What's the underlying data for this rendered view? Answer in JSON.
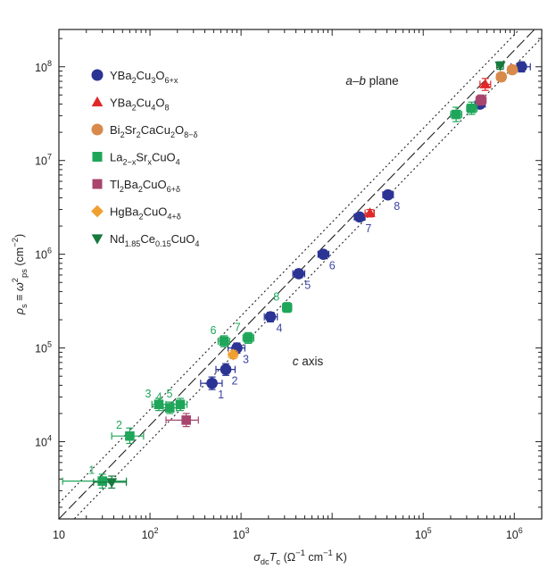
{
  "chart_data": {
    "type": "scatter",
    "x_scale": "log",
    "y_scale": "log",
    "xlim": [
      10,
      2000000
    ],
    "ylim": [
      1500,
      250000000
    ],
    "xlabel": "σdcTc (Ω⁻¹ cm⁻¹ K)",
    "ylabel": "ρs ≡ ω²ps (cm⁻²)",
    "x_ticks": [
      {
        "value": 10,
        "base": "10",
        "exp": ""
      },
      {
        "value": 100,
        "base": "10",
        "exp": "2"
      },
      {
        "value": 1000,
        "base": "10",
        "exp": "3"
      },
      {
        "value": 100000,
        "base": "10",
        "exp": "5"
      },
      {
        "value": 1000000,
        "base": "10",
        "exp": "6"
      }
    ],
    "y_ticks": [
      {
        "value": 10000,
        "base": "10",
        "exp": "4"
      },
      {
        "value": 100000,
        "base": "10",
        "exp": "5"
      },
      {
        "value": 1000000,
        "base": "10",
        "exp": "6"
      },
      {
        "value": 10000000,
        "base": "10",
        "exp": "7"
      },
      {
        "value": 100000000,
        "base": "10",
        "exp": "8"
      }
    ],
    "region_labels": [
      "a–b plane",
      "c axis"
    ],
    "fit_lines": [
      {
        "name": "fit",
        "style": "long-dash",
        "points": [
          [
            10,
            1500
          ],
          [
            2000000,
            300000000
          ]
        ]
      },
      {
        "name": "upper bound",
        "style": "dotted",
        "points": [
          [
            10,
            2200
          ],
          [
            2000000,
            440000000
          ]
        ]
      },
      {
        "name": "lower bound",
        "style": "dotted",
        "points": [
          [
            10,
            1020
          ],
          [
            2000000,
            204000000
          ]
        ]
      }
    ],
    "series": [
      {
        "name": "YBa2Cu3O6+x",
        "marker": "circle",
        "color": "#2b3494",
        "label_color": "#3d45a3",
        "points": [
          {
            "x": 480,
            "y": 42000,
            "label": "1",
            "xerr": [
              360,
              620
            ],
            "yerr": [
              36000,
              49000
            ]
          },
          {
            "x": 680,
            "y": 59000,
            "label": "2",
            "xerr": [
              530,
              860
            ],
            "yerr": [
              51000,
              68000
            ]
          },
          {
            "x": 900,
            "y": 100000,
            "label": "3",
            "xerr": [
              720,
              1100
            ],
            "yerr": [
              88000,
              113000
            ]
          },
          {
            "x": 2100,
            "y": 215000,
            "label": "4",
            "xerr": [
              1800,
              2500
            ],
            "yerr": [
              190000,
              240000
            ]
          },
          {
            "x": 4300,
            "y": 620000,
            "label": "5",
            "xerr": [
              3700,
              5000
            ],
            "yerr": [
              560000,
              690000
            ]
          },
          {
            "x": 8000,
            "y": 1000000,
            "label": "6",
            "xerr": [
              7000,
              9200
            ],
            "yerr": [
              910000,
              1100000
            ]
          },
          {
            "x": 20000,
            "y": 2500000,
            "label": "7",
            "xerr": [
              17500,
              23000
            ],
            "yerr": [
              2300000,
              2720000
            ]
          },
          {
            "x": 41000,
            "y": 4300000,
            "label": "8",
            "xerr": [
              36000,
              47000
            ],
            "yerr": [
              3900000,
              4700000
            ]
          },
          {
            "x": 420000,
            "y": 40000000,
            "label": "",
            "xerr": [
              370000,
              480000
            ],
            "yerr": [
              36000000,
              44000000
            ]
          },
          {
            "x": 1200000,
            "y": 100000000,
            "label": "",
            "xerr": [
              920000,
              1500000
            ],
            "yerr": [
              88000000,
              113000000
            ]
          }
        ]
      },
      {
        "name": "YBa2Cu4O8",
        "marker": "triangle-up",
        "color": "#e02828",
        "label_color": "#e02828",
        "points": [
          {
            "x": 26000,
            "y": 2750000,
            "label": "",
            "xerr": [
              23000,
              29000
            ],
            "yerr": [
              2500000,
              3000000
            ]
          },
          {
            "x": 480000,
            "y": 65000000,
            "label": "",
            "xerr": [
              420000,
              550000
            ],
            "yerr": [
              56000000,
              75000000
            ]
          }
        ]
      },
      {
        "name": "Bi2Sr2CaCu2O8−δ",
        "marker": "circle",
        "color": "#d88a4a",
        "label_color": "#d88a4a",
        "points": [
          {
            "x": 720000,
            "y": 78000000,
            "label": "",
            "xerr": [
              640000,
              800000
            ],
            "yerr": [
              70000000,
              87000000
            ]
          },
          {
            "x": 950000,
            "y": 93000000,
            "label": "",
            "xerr": [
              850000,
              1060000
            ],
            "yerr": [
              84000000,
              103000000
            ]
          }
        ]
      },
      {
        "name": "La2−xSrxCuO4",
        "marker": "square",
        "color": "#1fa65a",
        "label_color": "#1fa65a",
        "points": [
          {
            "x": 30,
            "y": 3800,
            "label": "1",
            "xerr": [
              11,
              55
            ],
            "yerr": [
              3200,
              4500
            ]
          },
          {
            "x": 60,
            "y": 11500,
            "label": "2",
            "xerr": [
              38,
              85
            ],
            "yerr": [
              9600,
              14000
            ]
          },
          {
            "x": 125,
            "y": 25000,
            "label": "3",
            "xerr": [
              105,
              150
            ],
            "yerr": [
              21500,
              29000
            ]
          },
          {
            "x": 165,
            "y": 23000,
            "label": "4",
            "xerr": [
              140,
              195
            ],
            "yerr": [
              20000,
              26500
            ]
          },
          {
            "x": 215,
            "y": 25000,
            "label": "5",
            "xerr": [
              180,
              255
            ],
            "yerr": [
              21500,
              29000
            ]
          },
          {
            "x": 650,
            "y": 118000,
            "label": "6",
            "xerr": [
              560,
              750
            ],
            "yerr": [
              103000,
              135000
            ]
          },
          {
            "x": 1200,
            "y": 128000,
            "label": "7",
            "xerr": [
              1050,
              1380
            ],
            "yerr": [
              112000,
              146000
            ]
          },
          {
            "x": 3200,
            "y": 270000,
            "label": "8",
            "xerr": [
              2850,
              3600
            ],
            "yerr": [
              240000,
              305000
            ]
          },
          {
            "x": 230000,
            "y": 31000000,
            "label": "",
            "xerr": [
              200000,
              265000
            ],
            "yerr": [
              26000000,
              37000000
            ]
          },
          {
            "x": 340000,
            "y": 36000000,
            "label": "",
            "xerr": [
              300000,
              390000
            ],
            "yerr": [
              31000000,
              42000000
            ]
          }
        ]
      },
      {
        "name": "Tl2Ba2CuO6+δ",
        "marker": "square",
        "color": "#a8456f",
        "label_color": "#a8456f",
        "points": [
          {
            "x": 250,
            "y": 17000,
            "label": "",
            "xerr": [
              150,
              340
            ],
            "yerr": [
              14500,
              20000
            ]
          },
          {
            "x": 430000,
            "y": 44000000,
            "label": "",
            "xerr": [
              380000,
              490000
            ],
            "yerr": [
              39000000,
              50000000
            ]
          }
        ]
      },
      {
        "name": "HgBa2CuO4+δ",
        "marker": "diamond",
        "color": "#f0a030",
        "label_color": "#f0a030",
        "points": [
          {
            "x": 820,
            "y": 85000,
            "label": "",
            "xerr": [
              730,
              910
            ],
            "yerr": [
              77000,
              94000
            ]
          }
        ]
      },
      {
        "name": "Nd1.85Ce0.15CuO4",
        "marker": "triangle-down",
        "color": "#157a3c",
        "label_color": "#157a3c",
        "points": [
          {
            "x": 38,
            "y": 3700,
            "label": "",
            "xerr": [
              24,
              55
            ],
            "yerr": [
              3200,
              4300
            ]
          },
          {
            "x": 700000,
            "y": 103000000,
            "label": "",
            "xerr": [
              640000,
              760000
            ],
            "yerr": [
              94000000,
              113000000
            ]
          }
        ]
      }
    ]
  },
  "legend": {
    "entries": [
      {
        "parts": [
          [
            "YBa",
            ""
          ],
          [
            "2",
            "sub"
          ],
          [
            "Cu",
            ""
          ],
          [
            "3",
            "sub"
          ],
          [
            "O",
            ""
          ],
          [
            "6+x",
            "sub"
          ]
        ],
        "color": "#2b3494",
        "marker": "circle"
      },
      {
        "parts": [
          [
            "YBa",
            ""
          ],
          [
            "2",
            "sub"
          ],
          [
            "Cu",
            ""
          ],
          [
            "4",
            "sub"
          ],
          [
            "O",
            ""
          ],
          [
            "8",
            "sub"
          ]
        ],
        "color": "#e02828",
        "marker": "triangle-up"
      },
      {
        "parts": [
          [
            "Bi",
            ""
          ],
          [
            "2",
            "sub"
          ],
          [
            "Sr",
            ""
          ],
          [
            "2",
            "sub"
          ],
          [
            "CaCu",
            ""
          ],
          [
            "2",
            "sub"
          ],
          [
            "O",
            ""
          ],
          [
            "8−δ",
            "sub"
          ]
        ],
        "color": "#d88a4a",
        "marker": "circle"
      },
      {
        "parts": [
          [
            "La",
            ""
          ],
          [
            "2−x",
            "sub"
          ],
          [
            "Sr",
            ""
          ],
          [
            "x",
            "sub"
          ],
          [
            "CuO",
            ""
          ],
          [
            "4",
            "sub"
          ]
        ],
        "color": "#1fa65a",
        "marker": "square"
      },
      {
        "parts": [
          [
            "Tl",
            ""
          ],
          [
            "2",
            "sub"
          ],
          [
            "Ba",
            ""
          ],
          [
            "2",
            "sub"
          ],
          [
            "CuO",
            ""
          ],
          [
            "6+δ",
            "sub"
          ]
        ],
        "color": "#a8456f",
        "marker": "square"
      },
      {
        "parts": [
          [
            "HgBa",
            ""
          ],
          [
            "2",
            "sub"
          ],
          [
            "CuO",
            ""
          ],
          [
            "4+δ",
            "sub"
          ]
        ],
        "color": "#f0a030",
        "marker": "diamond"
      },
      {
        "parts": [
          [
            "Nd",
            ""
          ],
          [
            "1.85",
            "sub"
          ],
          [
            "Ce",
            ""
          ],
          [
            "0.15",
            "sub"
          ],
          [
            "CuO",
            ""
          ],
          [
            "4",
            "sub"
          ]
        ],
        "color": "#157a3c",
        "marker": "triangle-down"
      }
    ]
  },
  "axis_labels": {
    "x": {
      "parts": [
        [
          "σ",
          "i"
        ],
        [
          "dc",
          "sub"
        ],
        [
          "T",
          "i"
        ],
        [
          "c",
          "sub"
        ],
        [
          " (Ω",
          ""
        ],
        [
          "−1",
          "sup"
        ],
        [
          " cm",
          ""
        ],
        [
          "−1",
          "sup"
        ],
        [
          " K)",
          ""
        ]
      ]
    },
    "y": {
      "parts": [
        [
          "ρ",
          "i"
        ],
        [
          "s",
          "sub"
        ],
        [
          " ≡ ",
          ""
        ],
        [
          "ω",
          "i"
        ],
        [
          "2",
          "sup"
        ],
        [
          "ps",
          "sub"
        ],
        [
          " (cm",
          ""
        ],
        [
          "−2",
          "sup"
        ],
        [
          ")",
          ""
        ]
      ]
    }
  }
}
